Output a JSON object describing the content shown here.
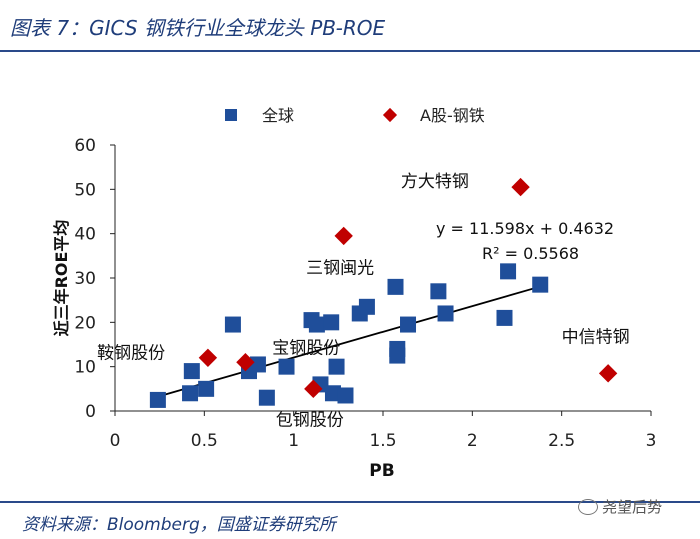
{
  "title": "图表 7：GICS 钢铁行业全球龙头 PB-ROE",
  "source": "资料来源：Bloomberg，国盛证券研究所",
  "watermark": "尧望后势",
  "colors": {
    "global": "#1f4e9a",
    "ashare": "#c00000",
    "frame": "#2a4a8a"
  },
  "chart_data": {
    "type": "scatter",
    "xlabel": "PB",
    "ylabel": "近三年ROE平均",
    "xlim": [
      0,
      3
    ],
    "ylim": [
      0,
      60
    ],
    "xticks": [
      "0",
      "0.5",
      "1",
      "1.5",
      "2",
      "2.5",
      "3"
    ],
    "yticks": [
      "0",
      "10",
      "20",
      "30",
      "40",
      "50",
      "60"
    ],
    "grid": false,
    "legend_position": "top",
    "series": [
      {
        "name": "全球",
        "marker": "square",
        "points": [
          [
            0.24,
            2.5
          ],
          [
            0.42,
            4
          ],
          [
            0.43,
            9
          ],
          [
            0.51,
            5
          ],
          [
            0.66,
            19.5
          ],
          [
            0.75,
            9
          ],
          [
            0.8,
            10.5
          ],
          [
            0.85,
            3
          ],
          [
            0.96,
            10
          ],
          [
            1.1,
            20.5
          ],
          [
            1.13,
            19.5
          ],
          [
            1.21,
            20
          ],
          [
            1.15,
            6
          ],
          [
            1.22,
            4
          ],
          [
            1.24,
            10
          ],
          [
            1.29,
            3.5
          ],
          [
            1.37,
            22
          ],
          [
            1.41,
            23.5
          ],
          [
            1.57,
            28
          ],
          [
            1.58,
            14
          ],
          [
            1.58,
            12.5
          ],
          [
            1.64,
            19.5
          ],
          [
            1.81,
            27
          ],
          [
            1.85,
            22
          ],
          [
            2.18,
            21
          ],
          [
            2.2,
            31.5
          ],
          [
            2.38,
            28.5
          ]
        ]
      },
      {
        "name": "A股-钢铁",
        "marker": "diamond",
        "points": [
          [
            2.27,
            50.5
          ],
          [
            1.28,
            39.5
          ],
          [
            0.52,
            12
          ],
          [
            0.73,
            11
          ],
          [
            1.11,
            5
          ],
          [
            2.76,
            8.5
          ]
        ]
      }
    ],
    "trendline": {
      "slope": 11.598,
      "intercept": 0.4632,
      "x_range": [
        0.24,
        2.38
      ]
    },
    "equation": "y = 11.598x + 0.4632",
    "r_squared": "R² = 0.5568",
    "annotations": [
      {
        "text": "方大特钢",
        "x": 1.6,
        "y": 50.5
      },
      {
        "text": "三钢闽光",
        "x": 1.07,
        "y": 31
      },
      {
        "text": "鞍钢股份",
        "x": -0.1,
        "y": 11.8
      },
      {
        "text": "宝钢股份",
        "x": 0.88,
        "y": 13
      },
      {
        "text": "包钢股份",
        "x": 0.9,
        "y": -3.3
      },
      {
        "text": "中信特钢",
        "x": 2.5,
        "y": 15.5
      }
    ]
  }
}
